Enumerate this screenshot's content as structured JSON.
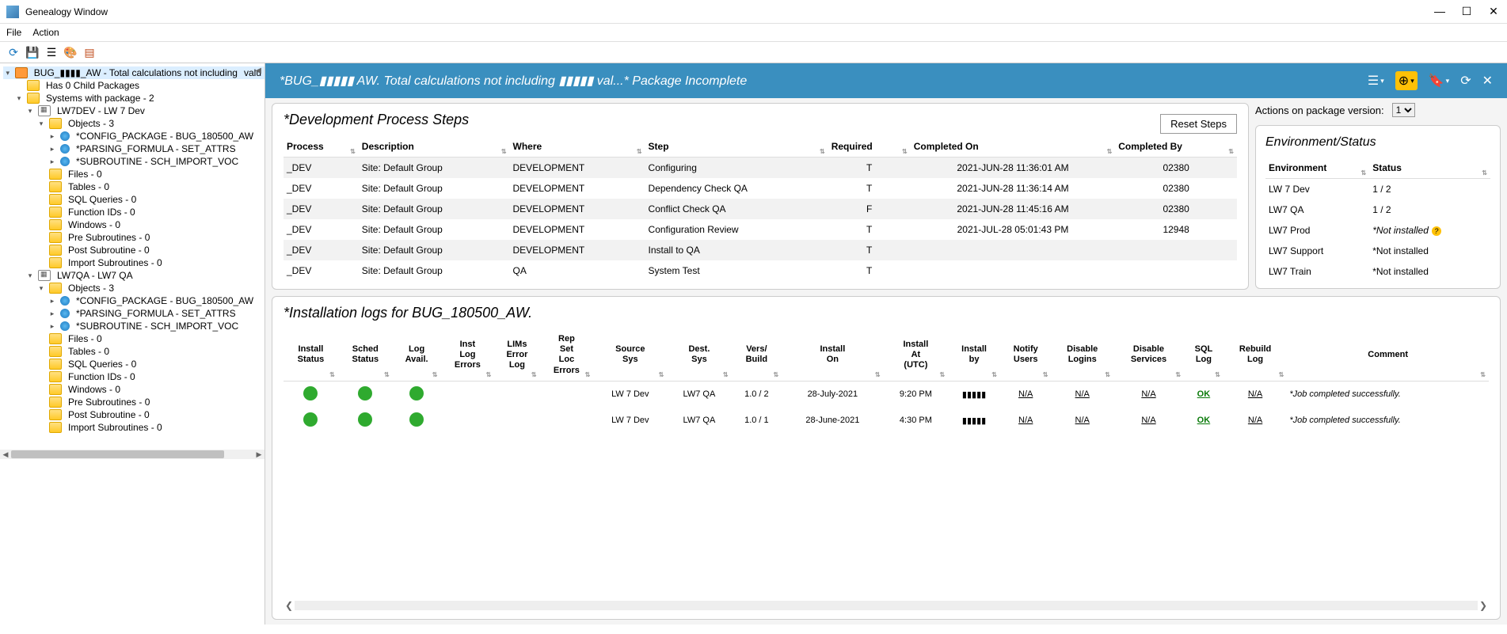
{
  "window": {
    "title": "Genealogy Window"
  },
  "menubar": {
    "file": "File",
    "action": "Action"
  },
  "tree": {
    "root_label": "BUG_▮▮▮▮_AW - Total calculations not including",
    "root_badge": "valu",
    "nodes": [
      {
        "id": "child-pkgs",
        "indent": 1,
        "icon": "folder",
        "label": "Has 0 Child Packages"
      },
      {
        "id": "systems",
        "indent": 1,
        "icon": "folder",
        "label": "Systems with package - 2",
        "toggler": "▾"
      },
      {
        "id": "lw7dev",
        "indent": 2,
        "icon": "db",
        "label": "LW7DEV - LW 7 Dev",
        "toggler": "▾"
      },
      {
        "id": "dev-objects",
        "indent": 3,
        "icon": "folder",
        "label": "Objects - 3",
        "toggler": "▾"
      },
      {
        "id": "dev-obj1",
        "indent": 4,
        "icon": "obj",
        "label": "*CONFIG_PACKAGE - BUG_180500_AW",
        "toggler": "▸"
      },
      {
        "id": "dev-obj2",
        "indent": 4,
        "icon": "obj",
        "label": "*PARSING_FORMULA - SET_ATTRS",
        "toggler": "▸"
      },
      {
        "id": "dev-obj3",
        "indent": 4,
        "icon": "obj",
        "label": "*SUBROUTINE - SCH_IMPORT_VOC",
        "toggler": "▸"
      },
      {
        "id": "dev-files",
        "indent": 3,
        "icon": "folder",
        "label": "Files - 0"
      },
      {
        "id": "dev-tables",
        "indent": 3,
        "icon": "folder",
        "label": "Tables - 0"
      },
      {
        "id": "dev-sql",
        "indent": 3,
        "icon": "folder",
        "label": "SQL Queries - 0"
      },
      {
        "id": "dev-func",
        "indent": 3,
        "icon": "folder",
        "label": "Function IDs - 0"
      },
      {
        "id": "dev-win",
        "indent": 3,
        "icon": "folder",
        "label": "Windows - 0"
      },
      {
        "id": "dev-pre",
        "indent": 3,
        "icon": "folder",
        "label": "Pre Subroutines - 0"
      },
      {
        "id": "dev-post",
        "indent": 3,
        "icon": "folder",
        "label": "Post Subroutine - 0"
      },
      {
        "id": "dev-imp",
        "indent": 3,
        "icon": "folder",
        "label": "Import Subroutines - 0"
      },
      {
        "id": "lw7qa",
        "indent": 2,
        "icon": "db",
        "label": "LW7QA - LW7 QA",
        "toggler": "▾"
      },
      {
        "id": "qa-objects",
        "indent": 3,
        "icon": "folder",
        "label": "Objects - 3",
        "toggler": "▾"
      },
      {
        "id": "qa-obj1",
        "indent": 4,
        "icon": "obj",
        "label": "*CONFIG_PACKAGE - BUG_180500_AW",
        "toggler": "▸"
      },
      {
        "id": "qa-obj2",
        "indent": 4,
        "icon": "obj",
        "label": "*PARSING_FORMULA - SET_ATTRS",
        "toggler": "▸"
      },
      {
        "id": "qa-obj3",
        "indent": 4,
        "icon": "obj",
        "label": "*SUBROUTINE - SCH_IMPORT_VOC",
        "toggler": "▸"
      },
      {
        "id": "qa-files",
        "indent": 3,
        "icon": "folder",
        "label": "Files - 0"
      },
      {
        "id": "qa-tables",
        "indent": 3,
        "icon": "folder",
        "label": "Tables - 0"
      },
      {
        "id": "qa-sql",
        "indent": 3,
        "icon": "folder",
        "label": "SQL Queries - 0"
      },
      {
        "id": "qa-func",
        "indent": 3,
        "icon": "folder",
        "label": "Function IDs - 0"
      },
      {
        "id": "qa-win",
        "indent": 3,
        "icon": "folder",
        "label": "Windows - 0"
      },
      {
        "id": "qa-pre",
        "indent": 3,
        "icon": "folder",
        "label": "Pre Subroutines - 0"
      },
      {
        "id": "qa-post",
        "indent": 3,
        "icon": "folder",
        "label": "Post Subroutine - 0"
      },
      {
        "id": "qa-imp",
        "indent": 3,
        "icon": "folder",
        "label": "Import Subroutines - 0"
      }
    ]
  },
  "banner": {
    "title": "*BUG_▮▮▮▮▮ AW. Total calculations not including ▮▮▮▮▮ val...* Package Incomplete"
  },
  "actions": {
    "label": "Actions on package version:",
    "value": "1"
  },
  "steps": {
    "title": "*Development Process Steps",
    "reset": "Reset Steps",
    "cols": [
      "Process",
      "Description",
      "Where",
      "Step",
      "Required",
      "Completed On",
      "Completed By"
    ],
    "rows": [
      {
        "process": "_DEV",
        "desc": "Site: Default Group",
        "where": "DEVELOPMENT",
        "step": "Configuring",
        "req": "T",
        "on": "2021-JUN-28 11:36:01 AM",
        "by": "02380"
      },
      {
        "process": "_DEV",
        "desc": "Site: Default Group",
        "where": "DEVELOPMENT",
        "step": "Dependency Check QA",
        "req": "T",
        "on": "2021-JUN-28 11:36:14 AM",
        "by": "02380"
      },
      {
        "process": "_DEV",
        "desc": "Site: Default Group",
        "where": "DEVELOPMENT",
        "step": "Conflict Check QA",
        "req": "F",
        "on": "2021-JUN-28 11:45:16 AM",
        "by": "02380"
      },
      {
        "process": "_DEV",
        "desc": "Site: Default Group",
        "where": "DEVELOPMENT",
        "step": "Configuration Review",
        "req": "T",
        "on": "2021-JUL-28 05:01:43 PM",
        "by": "12948"
      },
      {
        "process": "_DEV",
        "desc": "Site: Default Group",
        "where": "DEVELOPMENT",
        "step": "Install to QA",
        "req": "T",
        "on": "",
        "by": ""
      },
      {
        "process": "_DEV",
        "desc": "Site: Default Group",
        "where": "QA",
        "step": "System Test",
        "req": "T",
        "on": "",
        "by": ""
      }
    ]
  },
  "env": {
    "title": "Environment/Status",
    "cols": [
      "Environment",
      "Status"
    ],
    "rows": [
      {
        "env": "LW 7 Dev",
        "status": "1 / 2",
        "italic": false,
        "warn": false
      },
      {
        "env": "LW7 QA",
        "status": "1 / 2",
        "italic": false,
        "warn": false
      },
      {
        "env": "LW7 Prod",
        "status": "*Not installed",
        "italic": true,
        "warn": true
      },
      {
        "env": "LW7 Support",
        "status": "*Not installed",
        "italic": false,
        "warn": false
      },
      {
        "env": "LW7 Train",
        "status": "*Not installed",
        "italic": false,
        "warn": false
      }
    ]
  },
  "logs": {
    "title": "*Installation logs for BUG_180500_AW.",
    "cols": [
      "Install Status",
      "Sched Status",
      "Log Avail.",
      "Inst Log Errors",
      "LIMs Error Log",
      "Rep Set Loc Errors",
      "Source Sys",
      "Dest. Sys",
      "Vers/ Build",
      "Install On",
      "Install At (UTC)",
      "Install by",
      "Notify Users",
      "Disable Logins",
      "Disable Services",
      "SQL Log",
      "Rebuild Log",
      "Comment"
    ],
    "rows": [
      {
        "src": "LW 7 Dev",
        "dest": "LW7 QA",
        "vers": "1.0 / 2",
        "on": "28-July-2021",
        "at": "9:20 PM",
        "by": "▮▮▮▮▮",
        "notify": "N/A",
        "logins": "N/A",
        "svc": "N/A",
        "sql": "OK",
        "rebuild": "N/A",
        "comment": "*Job completed successfully."
      },
      {
        "src": "LW 7 Dev",
        "dest": "LW7 QA",
        "vers": "1.0 / 1",
        "on": "28-June-2021",
        "at": "4:30 PM",
        "by": "▮▮▮▮▮",
        "notify": "N/A",
        "logins": "N/A",
        "svc": "N/A",
        "sql": "OK",
        "rebuild": "N/A",
        "comment": "*Job completed successfully."
      }
    ]
  },
  "colors": {
    "banner_bg": "#3a8fbf",
    "dot_green": "#2faa2f",
    "highlight": "#ffc107"
  }
}
